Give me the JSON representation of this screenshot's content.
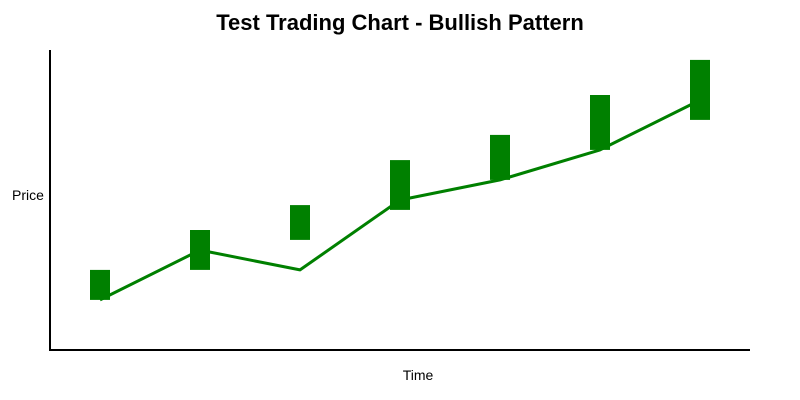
{
  "chart_data": {
    "type": "bar",
    "subtype": "candlestick-with-line",
    "title": "Test Trading Chart - Bullish Pattern",
    "xlabel": "Time",
    "ylabel": "Price",
    "ylim": [
      0,
      100
    ],
    "grid": false,
    "legend": "none",
    "x": [
      1,
      2,
      3,
      4,
      5,
      6,
      7
    ],
    "candles": [
      {
        "low": 16.7,
        "high": 26.7
      },
      {
        "low": 26.7,
        "high": 40.0
      },
      {
        "low": 36.7,
        "high": 48.3
      },
      {
        "low": 46.7,
        "high": 63.3
      },
      {
        "low": 56.7,
        "high": 71.7
      },
      {
        "low": 66.7,
        "high": 85.0
      },
      {
        "low": 76.7,
        "high": 96.7
      }
    ],
    "line_values": [
      16.7,
      33.3,
      26.7,
      50.0,
      56.7,
      66.7,
      83.3
    ],
    "colors": {
      "candle": "#008000",
      "line": "#008000",
      "axis": "#000000"
    }
  }
}
